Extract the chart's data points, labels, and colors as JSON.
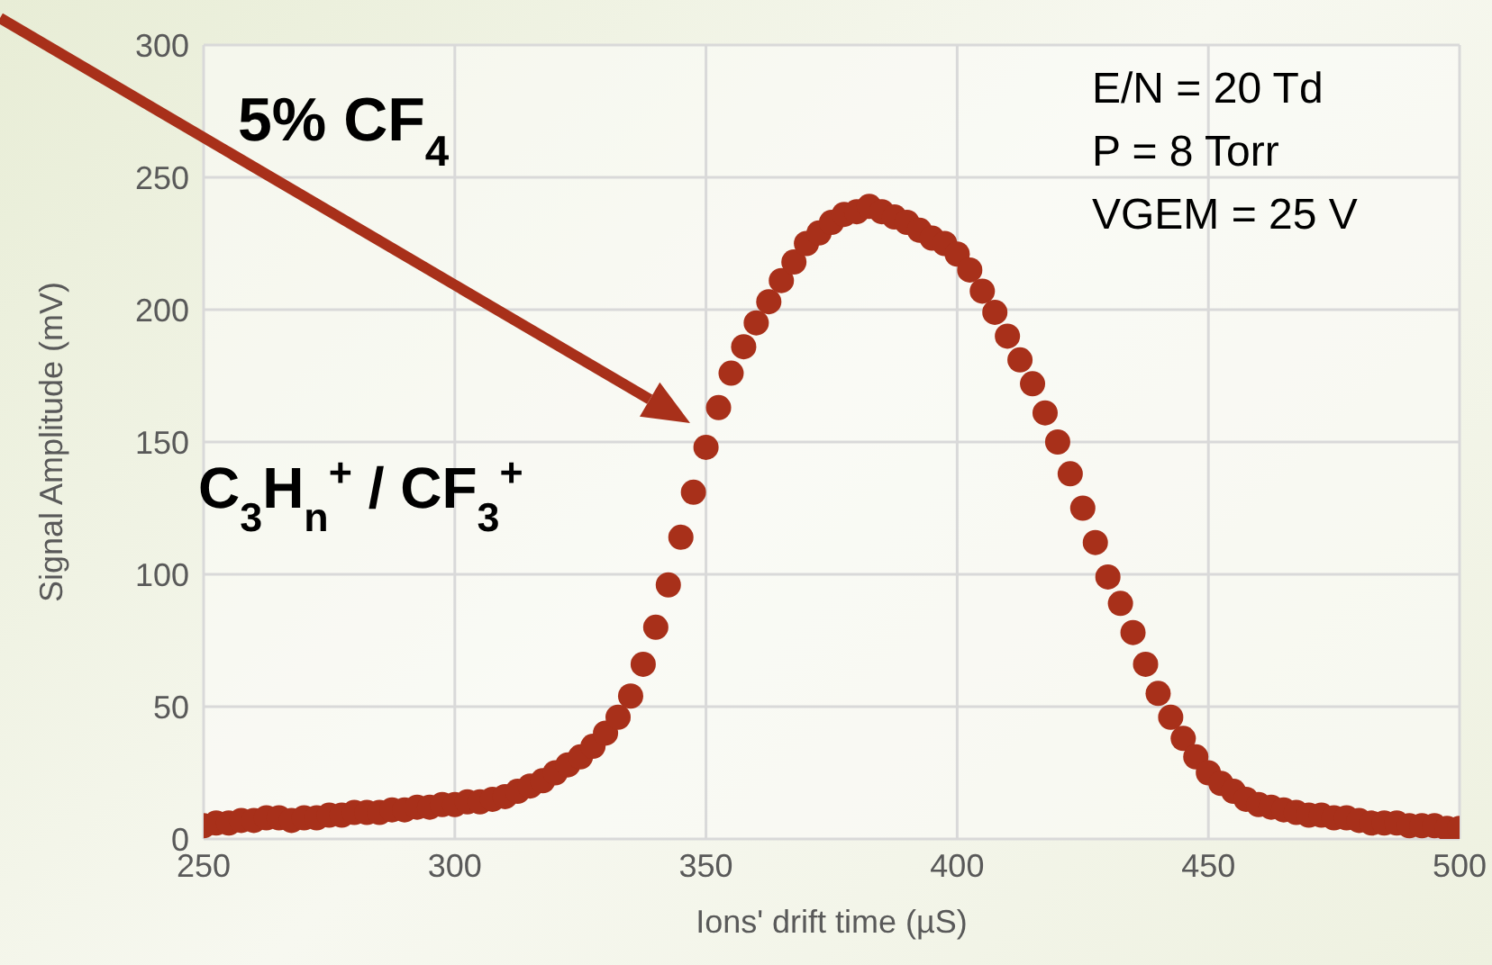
{
  "chart_data": {
    "type": "scatter",
    "xlabel": "Ions' drift time (µS)",
    "ylabel": "Signal Amplitude (mV)",
    "xlim": [
      250,
      500
    ],
    "xticks": [
      250,
      300,
      350,
      400,
      450,
      500
    ],
    "ylim": [
      0,
      300
    ],
    "yticks": [
      0,
      50,
      100,
      150,
      200,
      250,
      300
    ],
    "grid": true,
    "marker": "circle",
    "annotations": [
      "5% CF$_{4}$",
      "E/N = 20 Td",
      "P = 8 Torr",
      "VGEM = 25 V",
      "C$_{3}$H$_{n}$$^{+}$ / CF$_{3}$$^{+}$"
    ],
    "series": [
      {
        "color": "#a8301a",
        "x": [
          250,
          252.5,
          255,
          257.5,
          260,
          262.5,
          265,
          267.5,
          270,
          272.5,
          275,
          277.5,
          280,
          282.5,
          285,
          287.5,
          290,
          292.5,
          295,
          297.5,
          300,
          302.5,
          305,
          307.5,
          310,
          312.5,
          315,
          317.5,
          320,
          322.5,
          325,
          327.5,
          330,
          332.5,
          335,
          337.5,
          340,
          342.5,
          345,
          347.5,
          350,
          352.5,
          355,
          357.5,
          360,
          362.5,
          365,
          367.5,
          370,
          372.5,
          375,
          377.5,
          380,
          382.5,
          385,
          387.5,
          390,
          392.5,
          395,
          397.5,
          400,
          402.5,
          405,
          407.5,
          410,
          412.5,
          415,
          417.5,
          420,
          422.5,
          425,
          427.5,
          430,
          432.5,
          435,
          437.5,
          440,
          442.5,
          445,
          447.5,
          450,
          452.5,
          455,
          457.5,
          460,
          462.5,
          465,
          467.5,
          470,
          472.5,
          475,
          477.5,
          480,
          482.5,
          485,
          487.5,
          490,
          492.5,
          495,
          497.5,
          500
        ],
        "values": [
          5,
          6,
          6,
          7,
          7,
          8,
          8,
          7,
          8,
          8,
          9,
          9,
          10,
          10,
          10,
          11,
          11,
          12,
          12,
          13,
          13,
          14,
          14,
          15,
          16,
          18,
          20,
          22,
          25,
          28,
          31,
          35,
          40,
          46,
          54,
          66,
          80,
          96,
          114,
          131,
          148,
          163,
          176,
          186,
          195,
          203,
          211,
          218,
          225,
          229,
          233,
          236,
          237,
          239,
          237,
          235,
          233,
          230,
          227,
          225,
          221,
          215,
          207,
          199,
          190,
          181,
          172,
          161,
          150,
          138,
          125,
          112,
          99,
          89,
          78,
          66,
          55,
          46,
          38,
          31,
          25,
          21,
          18,
          15,
          13,
          12,
          11,
          10,
          9,
          9,
          8,
          8,
          7,
          6,
          6,
          6,
          5,
          5,
          5,
          4,
          4
        ]
      }
    ]
  }
}
